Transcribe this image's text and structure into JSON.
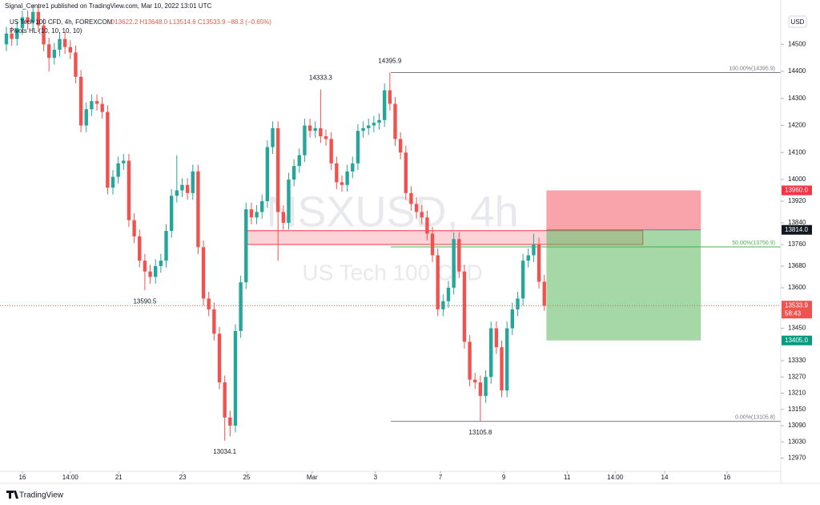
{
  "chart_data": {
    "type": "candlestick",
    "header": "Signal_Centre1 published on TradingView.com, Mar 10, 2022 13:01 UTC",
    "symbol": "US Tech 100 CFD, 4h, FOREXCOM",
    "ohlc_text": "O13622.2 H13648.0 L13514.6 C13533.9 −88.3 (−0.65%)",
    "indicator": "Pivots HL (10, 10, 10, 10)",
    "watermark": "NSXUSD, 4h",
    "watermark_sub": "US Tech 100 CFD",
    "currency": "USD",
    "brand": "TradingView",
    "up_color": "#26a69a",
    "down_color": "#ef5350",
    "open": [
      14500,
      14540,
      14520,
      14560,
      14600,
      14580,
      14620,
      14570,
      14500,
      14450,
      14480,
      14520,
      14490,
      14470,
      14380,
      14200,
      14260,
      14290,
      14280,
      14250,
      13970,
      14010,
      14060,
      14070,
      13850,
      13790,
      13700,
      13660,
      13640,
      13680,
      13700,
      13810,
      13940,
      13960,
      13980,
      13950,
      14030,
      13750,
      13560,
      13520,
      13430,
      13250,
      13120,
      13090,
      13440,
      13620,
      13890,
      13860,
      13880,
      13920,
      14120,
      14190,
      13880,
      13840,
      14000,
      14050,
      14090,
      14200,
      14180,
      14190,
      14160,
      14150,
      14060,
      13990,
      13980,
      14030,
      14060,
      14180,
      14190,
      14200,
      14210,
      14220,
      14330,
      14280,
      14150,
      14100,
      13950,
      13910,
      13880,
      13860,
      13800,
      13720,
      13520,
      13550,
      13600,
      13780,
      13660,
      13400,
      13260,
      13250,
      13200,
      13270,
      13450,
      13380,
      13220,
      13450,
      13520,
      13560,
      13700,
      13720,
      13760,
      13622.2
    ],
    "high": [
      14565,
      14565,
      14585,
      14625,
      14625,
      14645,
      14645,
      14595,
      14525,
      14505,
      14545,
      14545,
      14515,
      14495,
      14405,
      14285,
      14315,
      14315,
      14305,
      14275,
      14035,
      14085,
      14095,
      14095,
      13875,
      13815,
      13725,
      13685,
      13705,
      13725,
      13835,
      13965,
      14090,
      14005,
      14005,
      14055,
      14055,
      13775,
      13585,
      13545,
      13455,
      13275,
      13145,
      13465,
      13645,
      13915,
      13915,
      13905,
      13945,
      14145,
      14215,
      14215,
      13905,
      14025,
      14075,
      14115,
      14225,
      14225,
      14215,
      14333.3,
      14185,
      14175,
      14085,
      14015,
      14055,
      14085,
      14205,
      14215,
      14225,
      14235,
      14245,
      14355,
      14395.9,
      14305,
      14175,
      14125,
      13975,
      13935,
      13905,
      13885,
      13825,
      13745,
      13575,
      13625,
      13805,
      13805,
      13685,
      13425,
      13285,
      13275,
      13295,
      13475,
      13475,
      13405,
      13475,
      13545,
      13585,
      13725,
      13745,
      13800,
      13785,
      13648
    ],
    "low": [
      14475,
      14495,
      14495,
      14535,
      14555,
      14555,
      14545,
      14475,
      14400,
      14425,
      14455,
      14465,
      14445,
      14355,
      14175,
      14175,
      14235,
      14255,
      14225,
      13945,
      13945,
      13985,
      14035,
      13825,
      13765,
      13675,
      13590.5,
      13615,
      13615,
      13655,
      13675,
      13785,
      13915,
      13935,
      13925,
      13925,
      13725,
      13535,
      13495,
      13405,
      13225,
      13034.1,
      13050,
      13065,
      13415,
      13595,
      13835,
      13835,
      13855,
      13895,
      14095,
      13700,
      13815,
      13815,
      13975,
      14025,
      14065,
      14155,
      14155,
      14135,
      14125,
      14035,
      13965,
      13955,
      13955,
      14005,
      14035,
      14155,
      14165,
      14175,
      14185,
      14195,
      14255,
      14125,
      14075,
      13925,
      13885,
      13855,
      13835,
      13775,
      13695,
      13495,
      13495,
      13525,
      13575,
      13635,
      13375,
      13235,
      13225,
      13105.8,
      13175,
      13245,
      13355,
      13195,
      13195,
      13425,
      13495,
      13535,
      13675,
      13695,
      13597,
      13514.6
    ],
    "close": [
      14540,
      14520,
      14560,
      14600,
      14580,
      14620,
      14570,
      14500,
      14450,
      14480,
      14520,
      14490,
      14470,
      14380,
      14200,
      14260,
      14290,
      14280,
      14250,
      13970,
      14010,
      14060,
      14070,
      13850,
      13790,
      13700,
      13660,
      13640,
      13680,
      13700,
      13810,
      13940,
      13960,
      13980,
      13950,
      14030,
      13750,
      13560,
      13520,
      13430,
      13250,
      13120,
      13090,
      13440,
      13620,
      13890,
      13860,
      13880,
      13920,
      14120,
      14190,
      13880,
      13840,
      14000,
      14050,
      14090,
      14200,
      14180,
      14190,
      14160,
      14150,
      14060,
      13990,
      13980,
      14030,
      14060,
      14180,
      14190,
      14200,
      14210,
      14220,
      14330,
      14280,
      14150,
      14100,
      13950,
      13910,
      13880,
      13860,
      13800,
      13720,
      13520,
      13550,
      13600,
      13780,
      13660,
      13400,
      13260,
      13250,
      13200,
      13270,
      13450,
      13380,
      13220,
      13450,
      13520,
      13560,
      13700,
      13720,
      13760,
      13622.2,
      13533.9
    ],
    "xlim": [
      -1.2,
      145.4
    ],
    "xticks": [
      {
        "value": 3,
        "label": "16"
      },
      {
        "value": 12,
        "label": "14:00"
      },
      {
        "value": 21.1,
        "label": "21"
      },
      {
        "value": 33.1,
        "label": "23"
      },
      {
        "value": 45.1,
        "label": "25"
      },
      {
        "value": 57.4,
        "label": "Mar"
      },
      {
        "value": 69.3,
        "label": "3"
      },
      {
        "value": 81.5,
        "label": "7"
      },
      {
        "value": 93.4,
        "label": "9"
      },
      {
        "value": 105.3,
        "label": "11"
      },
      {
        "value": 114.3,
        "label": "14:00"
      },
      {
        "value": 123.6,
        "label": "14"
      },
      {
        "value": 135.3,
        "label": "16"
      }
    ],
    "ylim": [
      12921,
      14664
    ],
    "yticks": [
      14500,
      14400,
      14300,
      14200,
      14100,
      14000,
      13920,
      13840,
      13760,
      13680,
      13600,
      13450,
      13330,
      13270,
      13210,
      13150,
      13090,
      13030,
      12970
    ],
    "grid": false,
    "pivots": [
      {
        "x": 72,
        "value": 14395.9,
        "label": "14395.9"
      },
      {
        "x": 59,
        "value": 14333.3,
        "label": "14333.3"
      },
      {
        "x": 26,
        "value": 13590.5,
        "label": "13590.5"
      },
      {
        "x": 41,
        "value": 13034.1,
        "label": "13034.1"
      },
      {
        "x": 89,
        "value": 13105.8,
        "label": "13105.8"
      }
    ],
    "fib": {
      "x_start": 72.2,
      "levels": [
        {
          "value": 14395.9,
          "label": "100.00%(14395.9)",
          "color": "#787b86"
        },
        {
          "value": 13750.9,
          "label": "50.00%(13750.9)",
          "color": "#4caf50"
        },
        {
          "value": 13105.8,
          "label": "0.00%(13105.8)",
          "color": "#787b86"
        }
      ]
    },
    "zones": [
      {
        "x": [
          45.1,
          119.5
        ],
        "y": [
          13760,
          13811
        ],
        "fill": "rgba(242,54,69,0.22)",
        "stroke": "#f23645"
      },
      {
        "x": [
          101.4,
          130.4
        ],
        "y": [
          13814,
          13960
        ],
        "fill": "rgba(242,54,69,0.45)",
        "stroke": "none"
      },
      {
        "x": [
          101.4,
          130.4
        ],
        "y": [
          13405,
          13814
        ],
        "fill": "rgba(76,175,80,0.5)",
        "stroke": "none"
      }
    ],
    "entry": {
      "value": 13814,
      "x": [
        101.4,
        130.4
      ]
    },
    "price_tags": [
      {
        "value": 13960,
        "label": "13960.0",
        "color": "#f23645"
      },
      {
        "value": 13814,
        "label": "13814.0",
        "color": "#131722"
      },
      {
        "value": 13533.9,
        "label": "13533.9",
        "color": "#ef5350"
      },
      {
        "value": 13405,
        "label": "13405.0",
        "color": "#089981"
      }
    ],
    "countdown": "58:43"
  }
}
